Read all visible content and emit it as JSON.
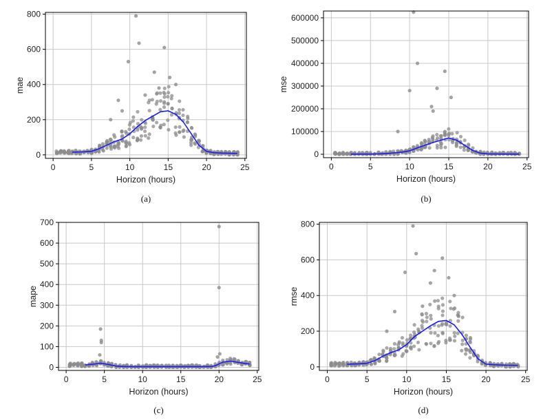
{
  "colors": {
    "points": "#8c8c8c",
    "line": "#1a1aff",
    "grid": "#c8c8c8",
    "axis": "#000000"
  },
  "chart_data": [
    {
      "type": "scatter",
      "caption": "(a)",
      "xlabel": "Horizon (hours)",
      "ylabel": "mae",
      "xlim": [
        -1,
        25.2
      ],
      "xticks": [
        0,
        5,
        10,
        15,
        20,
        25
      ],
      "ylim": [
        -20,
        810
      ],
      "yticks": [
        0,
        200,
        400,
        600,
        800
      ],
      "grid": true,
      "line": {
        "name": "",
        "x": [
          2.5,
          4,
          5,
          6,
          7,
          8,
          9,
          10,
          11,
          12,
          13,
          14,
          15,
          16,
          17,
          18,
          19,
          20,
          21,
          22,
          23,
          24
        ],
        "y": [
          15,
          17,
          20,
          35,
          55,
          75,
          90,
          120,
          160,
          195,
          220,
          245,
          250,
          230,
          185,
          120,
          55,
          20,
          12,
          10,
          9,
          8
        ]
      },
      "outliers": [
        [
          10.8,
          790
        ],
        [
          11.2,
          635
        ],
        [
          14.5,
          610
        ],
        [
          9.8,
          530
        ],
        [
          13.2,
          470
        ],
        [
          15.2,
          440
        ],
        [
          16,
          400
        ],
        [
          8.5,
          310
        ],
        [
          12,
          340
        ],
        [
          13.8,
          380
        ],
        [
          7.5,
          200
        ],
        [
          9,
          250
        ]
      ]
    },
    {
      "type": "scatter",
      "caption": "(b)",
      "xlabel": "Horizon (hours)",
      "ylabel": "mse",
      "xlim": [
        -1,
        25.2
      ],
      "xticks": [
        0,
        5,
        10,
        15,
        20,
        25
      ],
      "ylim": [
        -15000,
        630000
      ],
      "yticks": [
        0,
        100000,
        200000,
        300000,
        400000,
        500000,
        600000
      ],
      "grid": true,
      "line": {
        "name": "",
        "x": [
          2.5,
          4,
          5,
          6,
          7,
          8,
          9,
          10,
          11,
          12,
          13,
          14,
          15,
          16,
          17,
          18,
          19,
          20,
          21,
          22,
          23,
          24
        ],
        "y": [
          500,
          600,
          800,
          1500,
          3000,
          6000,
          9000,
          15000,
          28000,
          40000,
          52000,
          62000,
          72000,
          62000,
          40000,
          18000,
          5000,
          1500,
          900,
          700,
          600,
          500
        ]
      },
      "outliers": [
        [
          10.5,
          625000
        ],
        [
          11,
          400000
        ],
        [
          14.5,
          365000
        ],
        [
          10,
          280000
        ],
        [
          13.5,
          290000
        ],
        [
          15.3,
          250000
        ],
        [
          12.8,
          210000
        ],
        [
          13,
          190000
        ],
        [
          8.5,
          100000
        ]
      ]
    },
    {
      "type": "scatter",
      "caption": "(c)",
      "xlabel": "Horizon (hours)",
      "ylabel": "mape",
      "xlim": [
        -1,
        25.2
      ],
      "xticks": [
        0,
        5,
        10,
        15,
        20,
        25
      ],
      "ylim": [
        -15,
        700
      ],
      "yticks": [
        0,
        100,
        200,
        300,
        400,
        500,
        600,
        700
      ],
      "grid": true,
      "line": {
        "name": "",
        "x": [
          2.5,
          3.5,
          4.5,
          5.5,
          6.5,
          7.5,
          9,
          11,
          13,
          15,
          17,
          19,
          19.5,
          20.5,
          21.5,
          22.5,
          23.5,
          24
        ],
        "y": [
          12,
          15,
          20,
          14,
          6,
          4,
          3,
          3,
          3,
          3,
          3,
          4,
          8,
          25,
          30,
          24,
          18,
          16
        ]
      },
      "outliers": [
        [
          20,
          680
        ],
        [
          20,
          385
        ],
        [
          4.5,
          185
        ],
        [
          4.6,
          130
        ],
        [
          4.6,
          120
        ],
        [
          4.4,
          60
        ],
        [
          20.1,
          65
        ],
        [
          19.8,
          50
        ]
      ]
    },
    {
      "type": "scatter",
      "caption": "(d)",
      "xlabel": "Horizon (hours)",
      "ylabel": "rmse",
      "xlim": [
        -1,
        25.2
      ],
      "xticks": [
        0,
        5,
        10,
        15,
        20,
        25
      ],
      "ylim": [
        -20,
        810
      ],
      "yticks": [
        0,
        200,
        400,
        600,
        800
      ],
      "grid": true,
      "line": {
        "name": "",
        "x": [
          2.5,
          4,
          5,
          6,
          7,
          8,
          9,
          10,
          11,
          12,
          13,
          14,
          15,
          16,
          17,
          18,
          19,
          20,
          21,
          22,
          23,
          24
        ],
        "y": [
          15,
          17,
          20,
          35,
          60,
          80,
          95,
          125,
          170,
          200,
          230,
          255,
          260,
          235,
          180,
          110,
          45,
          15,
          12,
          10,
          9,
          8
        ]
      },
      "outliers": [
        [
          10.8,
          790
        ],
        [
          11.2,
          635
        ],
        [
          14.5,
          610
        ],
        [
          9.8,
          530
        ],
        [
          13.5,
          540
        ],
        [
          15.3,
          500
        ],
        [
          16,
          400
        ],
        [
          13,
          470
        ],
        [
          8.5,
          310
        ],
        [
          12,
          340
        ],
        [
          7.5,
          200
        ]
      ]
    }
  ]
}
